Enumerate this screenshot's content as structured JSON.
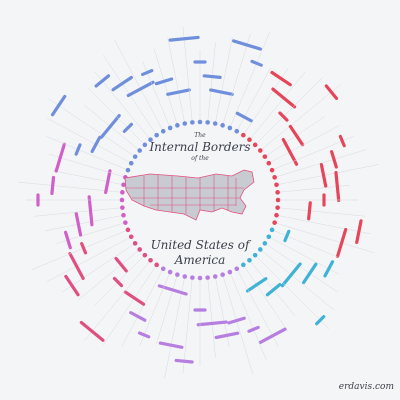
{
  "title": {
    "line1": "The",
    "line2": "Internal Borders",
    "line3": "of the",
    "line4": "United States of",
    "line5": "America"
  },
  "credit": "erdavis.com",
  "colors": {
    "background": "#f4f5f7",
    "inner_blue": "#6f8fdd",
    "teal": "#3fb2d6",
    "purple": "#b57ee0",
    "magenta": "#d060c8",
    "pink": "#e0507e",
    "red": "#e6465a",
    "label_text": "#5b6270",
    "map_fill": "#c9cbd3",
    "map_border": "#e0507e"
  },
  "map_icon": "us-map-icon"
}
